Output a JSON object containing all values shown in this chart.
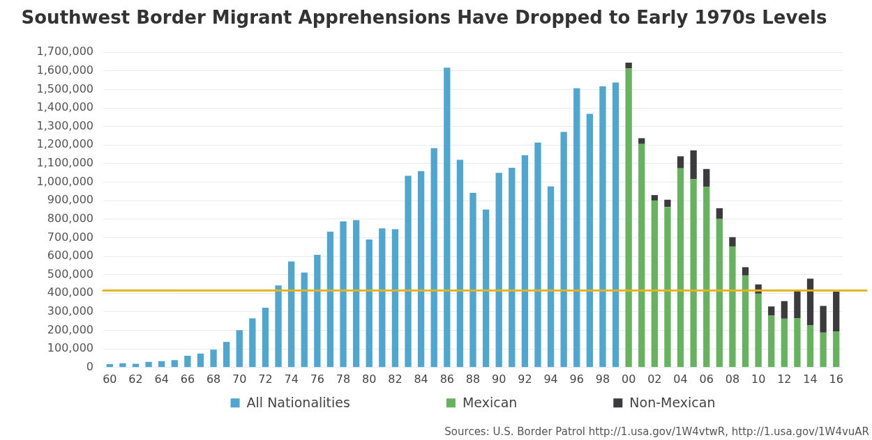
{
  "chart_data": {
    "type": "bar",
    "title": "Southwest Border Migrant Apprehensions Have Dropped to Early 1970s Levels",
    "categories": [
      "60",
      null,
      "62",
      null,
      "64",
      null,
      "66",
      null,
      "68",
      null,
      "70",
      null,
      "72",
      null,
      "74",
      null,
      "76",
      null,
      "78",
      null,
      "80",
      null,
      "82",
      null,
      "84",
      null,
      "86",
      null,
      "88",
      null,
      "90",
      null,
      "92",
      null,
      "94",
      null,
      "96",
      null,
      "98",
      null,
      "00",
      null,
      "02",
      null,
      "04",
      null,
      "06",
      null,
      "08",
      null,
      "10",
      null,
      "12",
      null,
      "14",
      null,
      "16"
    ],
    "series": [
      {
        "name": "All Nationalities",
        "color": "#4fa6cf",
        "values": [
          18000,
          23000,
          20000,
          30000,
          34000,
          40000,
          63000,
          75000,
          96000,
          138000,
          201000,
          265000,
          322000,
          442000,
          572000,
          512000,
          608000,
          733000,
          788000,
          795000,
          690000,
          750000,
          746000,
          1034000,
          1059000,
          1183000,
          1617000,
          1120000,
          942000,
          852000,
          1050000,
          1077000,
          1145000,
          1213000,
          977000,
          1271000,
          1506000,
          1368000,
          1517000,
          1537000,
          null,
          null,
          null,
          null,
          null,
          null,
          null,
          null,
          null,
          null,
          null,
          null,
          null,
          null,
          null,
          null,
          null
        ]
      },
      {
        "name": "Mexican",
        "color": "#67b25f",
        "values": [
          null,
          null,
          null,
          null,
          null,
          null,
          null,
          null,
          null,
          null,
          null,
          null,
          null,
          null,
          null,
          null,
          null,
          null,
          null,
          null,
          null,
          null,
          null,
          null,
          null,
          null,
          null,
          null,
          null,
          null,
          null,
          null,
          null,
          null,
          null,
          null,
          null,
          null,
          null,
          null,
          1613000,
          1206000,
          901000,
          866000,
          1074000,
          1016000,
          974000,
          801000,
          653000,
          496000,
          398000,
          280000,
          263000,
          265000,
          228000,
          188000,
          193000
        ]
      },
      {
        "name": "Non-Mexican",
        "color": "#3b3b3d",
        "values": [
          null,
          null,
          null,
          null,
          null,
          null,
          null,
          null,
          null,
          null,
          null,
          null,
          null,
          null,
          null,
          null,
          null,
          null,
          null,
          null,
          null,
          null,
          null,
          null,
          null,
          null,
          null,
          null,
          null,
          null,
          null,
          null,
          null,
          null,
          null,
          null,
          null,
          null,
          null,
          null,
          31000,
          31000,
          29000,
          39000,
          65000,
          155000,
          97000,
          58000,
          50000,
          45000,
          50000,
          49000,
          95000,
          150000,
          251000,
          144000,
          216000
        ]
      }
    ],
    "stacked": true,
    "ylim": [
      0,
      1700000
    ],
    "yticks": [
      {
        "value": 0,
        "label": "0"
      },
      {
        "value": 100000,
        "label": "100,000"
      },
      {
        "value": 200000,
        "label": "200,000"
      },
      {
        "value": 300000,
        "label": "300,000"
      },
      {
        "value": 400000,
        "label": "400,000"
      },
      {
        "value": 500000,
        "label": "500,000"
      },
      {
        "value": 600000,
        "label": "600,000"
      },
      {
        "value": 700000,
        "label": "700,000"
      },
      {
        "value": 800000,
        "label": "800,000"
      },
      {
        "value": 900000,
        "label": "900,000"
      },
      {
        "value": 1000000,
        "label": "1,000,000"
      },
      {
        "value": 1100000,
        "label": "1,100,000"
      },
      {
        "value": 1200000,
        "label": "1,200,000"
      },
      {
        "value": 1300000,
        "label": "1,300,000"
      },
      {
        "value": 1400000,
        "label": "1,400,000"
      },
      {
        "value": 1500000,
        "label": "1,500,000"
      },
      {
        "value": 1600000,
        "label": "1,600,000"
      },
      {
        "value": 1700000,
        "label": "1,700,000"
      }
    ],
    "grid": "y",
    "legend": "bottom",
    "ref_lines": [
      {
        "axis": "y",
        "value": 415000,
        "color": "#e3b422"
      }
    ],
    "annotations": [
      "Sources: U.S. Border Patrol http://1.usa.gov/1W4vtwR, http://1.usa.gov/1W4vuAR"
    ]
  }
}
